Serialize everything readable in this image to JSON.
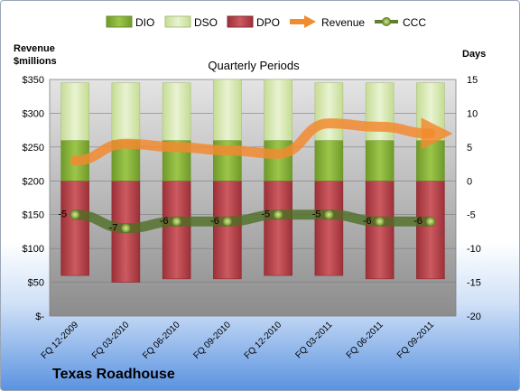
{
  "chart_data": {
    "type": "bar",
    "title": "Quarterly Periods",
    "company": "Texas Roadhouse",
    "left_axis_label": [
      "Revenue",
      "$millions"
    ],
    "right_axis_label": "Days",
    "left_ticks": [
      "$-",
      "$50",
      "$100",
      "$150",
      "$200",
      "$250",
      "$300",
      "$350"
    ],
    "left_ylim": [
      0,
      350
    ],
    "right_ticks": [
      "-20",
      "-15",
      "-10",
      "-5",
      "0",
      "5",
      "10",
      "15"
    ],
    "right_ylim": [
      -20,
      15
    ],
    "categories": [
      "FQ 12-2009",
      "FQ 03-2010",
      "FQ 06-2010",
      "FQ 09-2010",
      "FQ 12-2010",
      "FQ 03-2011",
      "FQ 06-2011",
      "FQ 09-2011"
    ],
    "legend": [
      "DIO",
      "DSO",
      "DPO",
      "Revenue",
      "CCC"
    ],
    "legend_placement": "top",
    "grid": true,
    "series": [
      {
        "name": "DIO",
        "axis": "right",
        "color": "#8bb53c",
        "values": [
          6,
          6,
          6,
          6,
          6,
          6,
          6,
          6
        ]
      },
      {
        "name": "DSO",
        "axis": "right",
        "color": "#d7e8b0",
        "values": [
          8.5,
          8.5,
          8.5,
          9,
          9,
          8.5,
          8.5,
          8.5
        ]
      },
      {
        "name": "DPO",
        "axis": "right",
        "color": "#b8454d",
        "values": [
          -14,
          -15,
          -14.5,
          -14.5,
          -14,
          -14,
          -14.5,
          -14.5
        ]
      },
      {
        "name": "Revenue",
        "axis": "left",
        "color": "#f28a30",
        "values": [
          230,
          255,
          250,
          245,
          240,
          285,
          280,
          270
        ]
      },
      {
        "name": "CCC",
        "axis": "right",
        "color": "#5f7f2a",
        "values": [
          -5,
          -7,
          -6,
          -6,
          -5,
          -5,
          -6,
          -6
        ],
        "labels": [
          "-5",
          "-7",
          "-6",
          "-6",
          "-5",
          "-5",
          "-6",
          "-6"
        ]
      }
    ]
  }
}
